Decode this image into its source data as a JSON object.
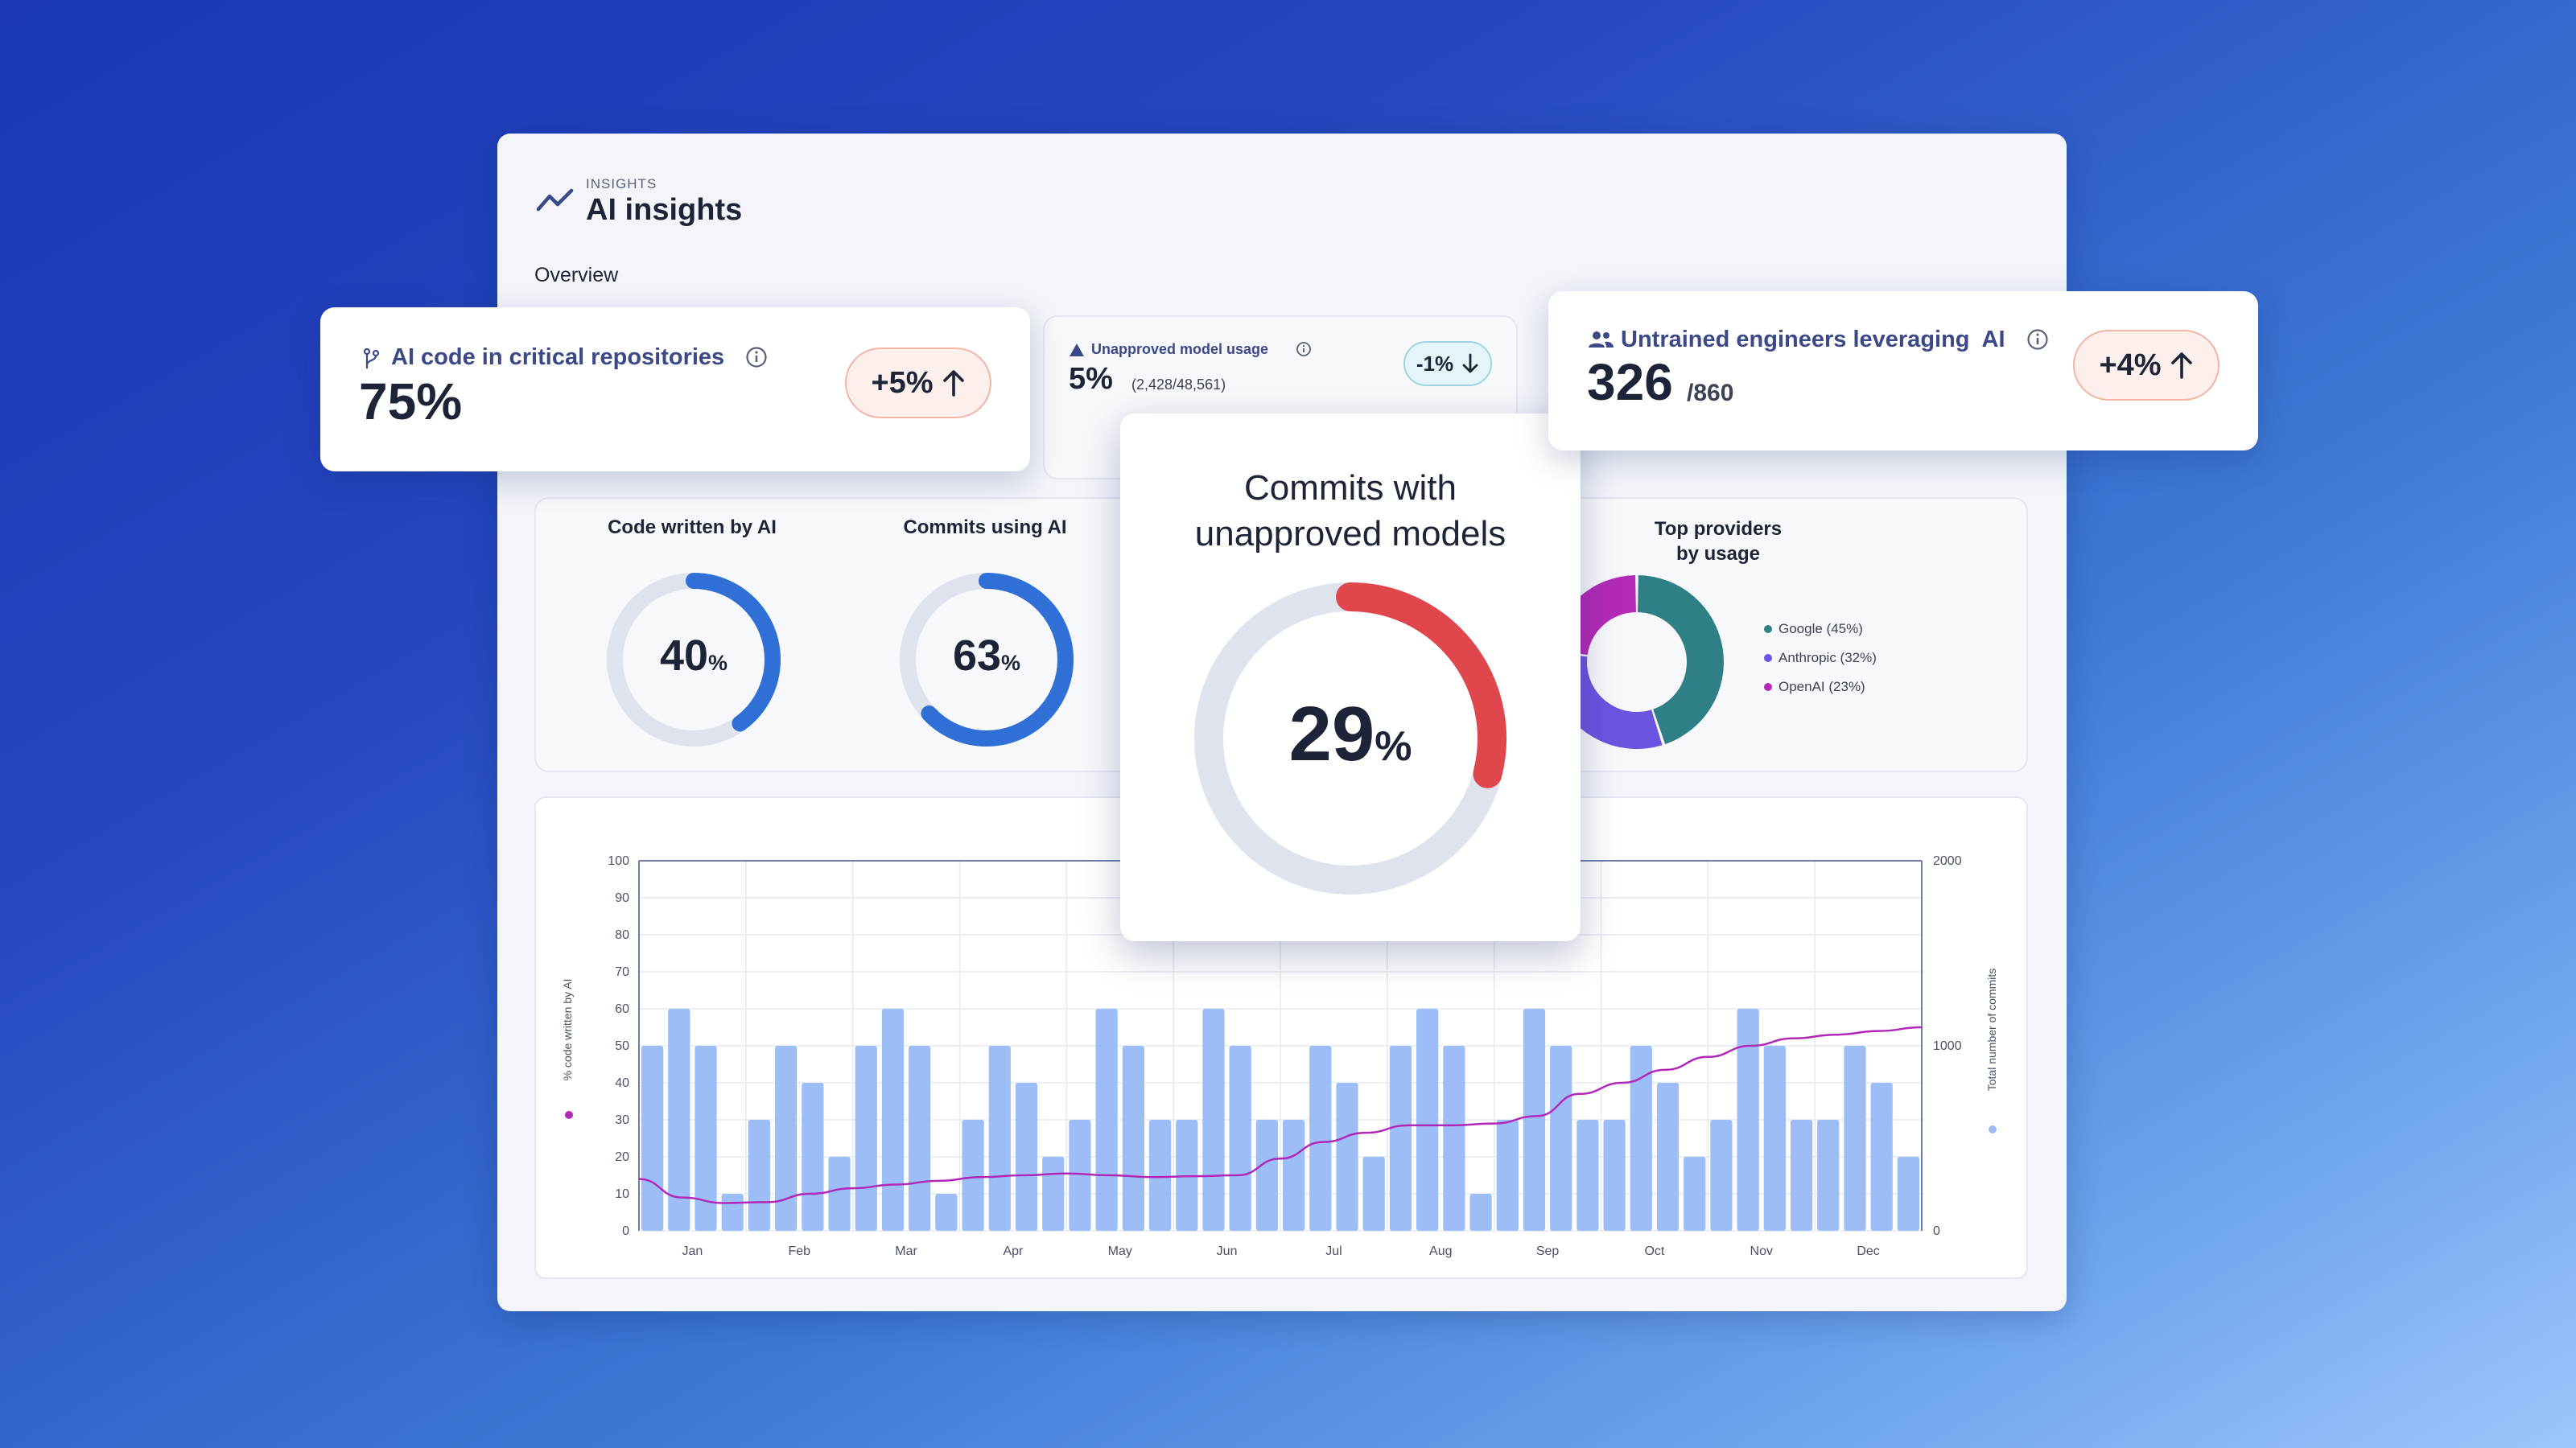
{
  "header": {
    "eyebrow": "INSIGHTS",
    "title": "AI insights",
    "section": "Overview"
  },
  "metrics": {
    "critical_repos": {
      "label": "AI code in critical repositories",
      "value": "75%",
      "change": "+5%",
      "direction": "up"
    },
    "unapproved_usage": {
      "label": "Unapproved model usage",
      "value": "5%",
      "detail": "(2,428/48,561)",
      "change": "-1%",
      "direction": "down"
    },
    "untrained_engineers": {
      "label": "Untrained engineers leveraging  AI",
      "value": "326",
      "total": "/860",
      "change": "+4%",
      "direction": "up"
    }
  },
  "donuts": [
    {
      "title": "Code written by AI",
      "value": "40",
      "unit": "%",
      "fraction": 0.4,
      "color": "#2f6fd6"
    },
    {
      "title": "Commits using AI",
      "value": "63",
      "unit": "%",
      "fraction": 0.63,
      "color": "#2f6fd6"
    }
  ],
  "popup": {
    "title_line1": "Commits with",
    "title_line2": "unapproved models",
    "value": "29",
    "unit": "%",
    "fraction": 0.29,
    "color": "#e0474c"
  },
  "providers": {
    "title_line1": "Top providers",
    "title_line2": "by usage",
    "items": [
      {
        "label": "Google (45%)",
        "share": 45,
        "color": "#2f7f86"
      },
      {
        "label": "Anthropic (32%)",
        "share": 32,
        "color": "#6b55e0"
      },
      {
        "label": "OpenAI (23%)",
        "share": 23,
        "color": "#b42ab6"
      }
    ]
  },
  "colors": {
    "bar": "#9dbdf6",
    "line": "#b128b8",
    "track": "#dfe3ee"
  },
  "chart_data": {
    "type": "bar",
    "y_left": {
      "label": "% code written by AI",
      "ticks": [
        "0",
        "10",
        "20",
        "30",
        "40",
        "50",
        "60",
        "70",
        "80",
        "90",
        "100"
      ],
      "lim": [
        0,
        100
      ]
    },
    "y_right": {
      "label": "Total number of commits",
      "ticks": [
        "0",
        "1000",
        "2000"
      ],
      "lim": [
        0,
        2000
      ]
    },
    "month_labels": [
      "Jan",
      "Feb",
      "Mar",
      "Apr",
      "May",
      "Jun",
      "Jul",
      "Aug",
      "Sep",
      "Oct",
      "Nov",
      "Dec"
    ],
    "bars_per_month": 4,
    "bar_values": [
      50,
      60,
      50,
      10,
      30,
      50,
      40,
      20,
      50,
      60,
      50,
      10,
      30,
      50,
      40,
      20,
      30,
      60,
      50,
      30,
      30,
      60,
      50,
      30,
      30,
      50,
      40,
      20,
      50,
      60,
      50,
      10,
      30,
      60,
      50,
      30,
      30,
      50,
      40,
      20,
      30,
      60,
      50,
      30,
      30,
      50,
      40,
      20
    ],
    "line_values": [
      280,
      180,
      150,
      155,
      200,
      230,
      250,
      270,
      290,
      300,
      310,
      300,
      290,
      295,
      300,
      390,
      480,
      530,
      570,
      570,
      580,
      620,
      740,
      800,
      870,
      940,
      1000,
      1040,
      1060,
      1080,
      1100
    ],
    "grid": true
  }
}
